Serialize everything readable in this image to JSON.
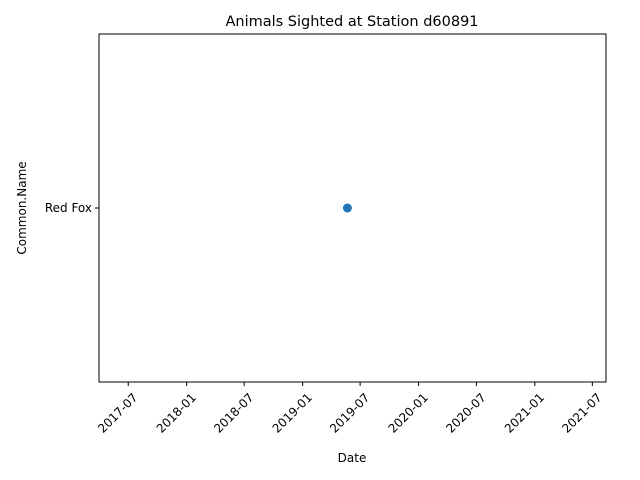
{
  "chart_data": {
    "type": "scatter",
    "title": "Animals Sighted at Station d60891",
    "xlabel": "Date",
    "ylabel": "Common.Name",
    "x_axis": {
      "scale": "date",
      "range": [
        "2017-03-31",
        "2021-08-13"
      ],
      "ticks": [
        "2017-07",
        "2018-01",
        "2018-07",
        "2019-01",
        "2019-07",
        "2020-01",
        "2020-07",
        "2021-01",
        "2021-07"
      ],
      "tick_rotation_deg": 45
    },
    "y_axis": {
      "scale": "categorical",
      "categories": [
        "Red Fox"
      ]
    },
    "points": [
      {
        "x": "2019-05-22",
        "y": "Red Fox"
      }
    ],
    "marker_color": "#1f77b4",
    "grid": false,
    "legend": "none"
  }
}
